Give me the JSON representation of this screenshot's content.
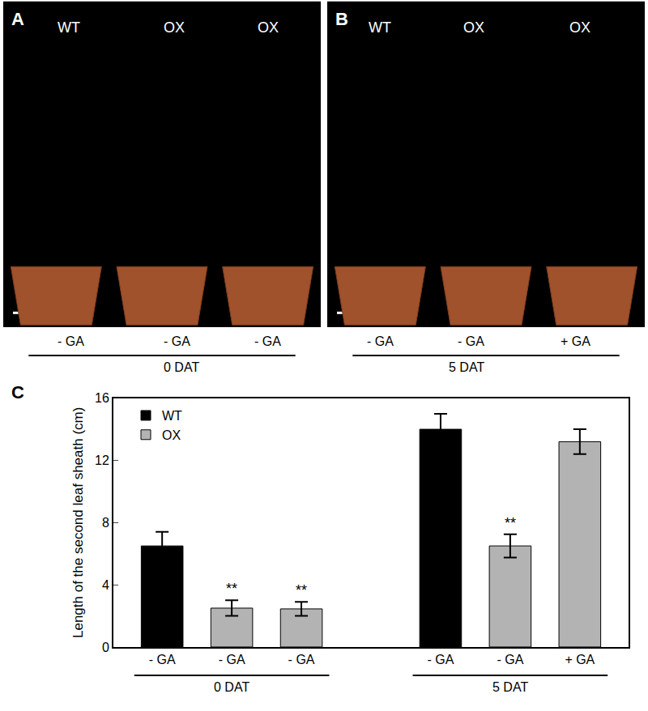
{
  "panels": [
    {
      "label": "A",
      "lanes": [
        "WT",
        "OX",
        "OX"
      ],
      "treatments": [
        "- GA",
        "- GA",
        "- GA"
      ],
      "time": "0 DAT"
    },
    {
      "label": "B",
      "lanes": [
        "WT",
        "OX",
        "OX"
      ],
      "treatments": [
        "- GA",
        "- GA",
        "+ GA"
      ],
      "time": "5 DAT"
    }
  ],
  "chart_data": {
    "type": "bar",
    "panel_label": "C",
    "y_label": "Length of the second leaf sheath (cm)",
    "categories": [
      "- GA",
      "- GA",
      "- GA",
      null,
      "- GA",
      "- GA",
      "+ GA"
    ],
    "groups": [
      {
        "label": "0 DAT",
        "start": 0,
        "end": 2
      },
      {
        "label": "5 DAT",
        "start": 4,
        "end": 6
      }
    ],
    "series": [
      {
        "name": "WT",
        "color": "#000000",
        "values": [
          6.5,
          null,
          null,
          null,
          14.0,
          null,
          null
        ],
        "errors": [
          0.9,
          null,
          null,
          null,
          1.0,
          null,
          null
        ]
      },
      {
        "name": "OX",
        "color": "#b3b3b3",
        "values": [
          null,
          2.5,
          2.45,
          null,
          null,
          6.5,
          13.2
        ],
        "errors": [
          null,
          0.5,
          0.45,
          null,
          null,
          0.75,
          0.8
        ],
        "significance": [
          {
            "index": 1,
            "text": "**"
          },
          {
            "index": 2,
            "text": "**"
          },
          {
            "index": 5,
            "text": "**"
          }
        ]
      }
    ],
    "ylim": [
      0,
      16
    ],
    "yticks": [
      0,
      4,
      8,
      12,
      16
    ],
    "grid": false,
    "legend": "upper left"
  }
}
